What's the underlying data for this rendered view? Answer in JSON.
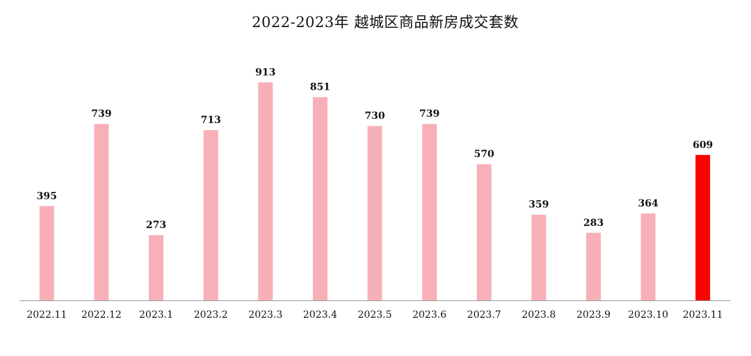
{
  "chart_data": {
    "type": "bar",
    "title": "2022-2023年 越城区商品新房成交套数",
    "xlabel": "",
    "ylabel": "",
    "categories": [
      "2022.11",
      "2022.12",
      "2023.1",
      "2023.2",
      "2023.3",
      "2023.4",
      "2023.5",
      "2023.6",
      "2023.7",
      "2023.8",
      "2023.9",
      "2023.10",
      "2023.11"
    ],
    "values": [
      395,
      739,
      273,
      713,
      913,
      851,
      730,
      739,
      570,
      359,
      283,
      364,
      609
    ],
    "data_labels": [
      "395",
      "739",
      "273",
      "713",
      "913",
      "851",
      "730",
      "739",
      "570",
      "359",
      "283",
      "364",
      "609"
    ],
    "highlight_index": 12,
    "ylim": [
      0,
      1000
    ],
    "grid": false,
    "legend": "none",
    "colors": {
      "bar": "#F8B0B8",
      "highlight": "#FF0000",
      "axis": "#999999",
      "text": "#111111"
    }
  }
}
